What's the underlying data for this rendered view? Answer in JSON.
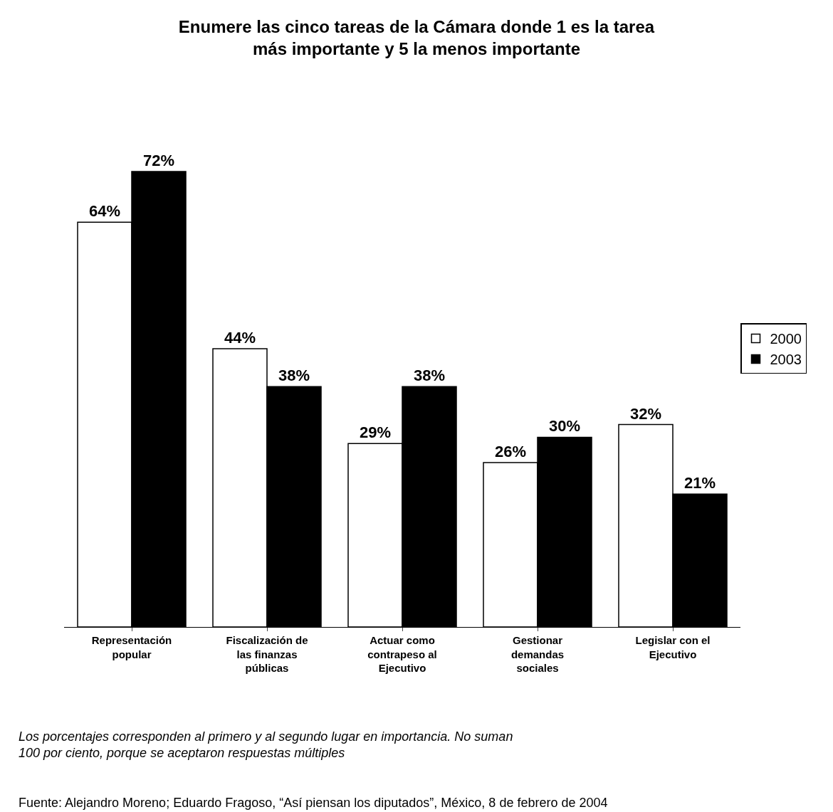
{
  "chart_data": {
    "type": "bar",
    "title": "Enumere las cinco tareas de la Cámara donde 1 es la tarea\nmás importante y 5 la menos importante",
    "categories": [
      "Representación\npopular",
      "Fiscalización de\nlas finanzas\npúblicas",
      "Actuar como\ncontrapeso al\nEjecutivo",
      "Gestionar\ndemandas\nsociales",
      "Legislar con el\nEjecutivo"
    ],
    "series": [
      {
        "name": "2000",
        "color": "#ffffff",
        "values": [
          64,
          44,
          29,
          26,
          32
        ],
        "value_labels": [
          "64%",
          "44%",
          "29%",
          "26%",
          "32%"
        ]
      },
      {
        "name": "2003",
        "color": "#000000",
        "values": [
          72,
          38,
          38,
          30,
          21
        ],
        "value_labels": [
          "72%",
          "38%",
          "38%",
          "30%",
          "21%"
        ]
      }
    ],
    "legend": "right",
    "annotations": [
      "Los porcentajes corresponden al primero y al segundo lugar en importancia. No suman\n100 por ciento, porque se aceptaron respuestas múltiples",
      "Fuente: Alejandro Moreno; Eduardo Fragoso, “Así piensan los diputados”, México, 8 de febrero de 2004"
    ]
  }
}
